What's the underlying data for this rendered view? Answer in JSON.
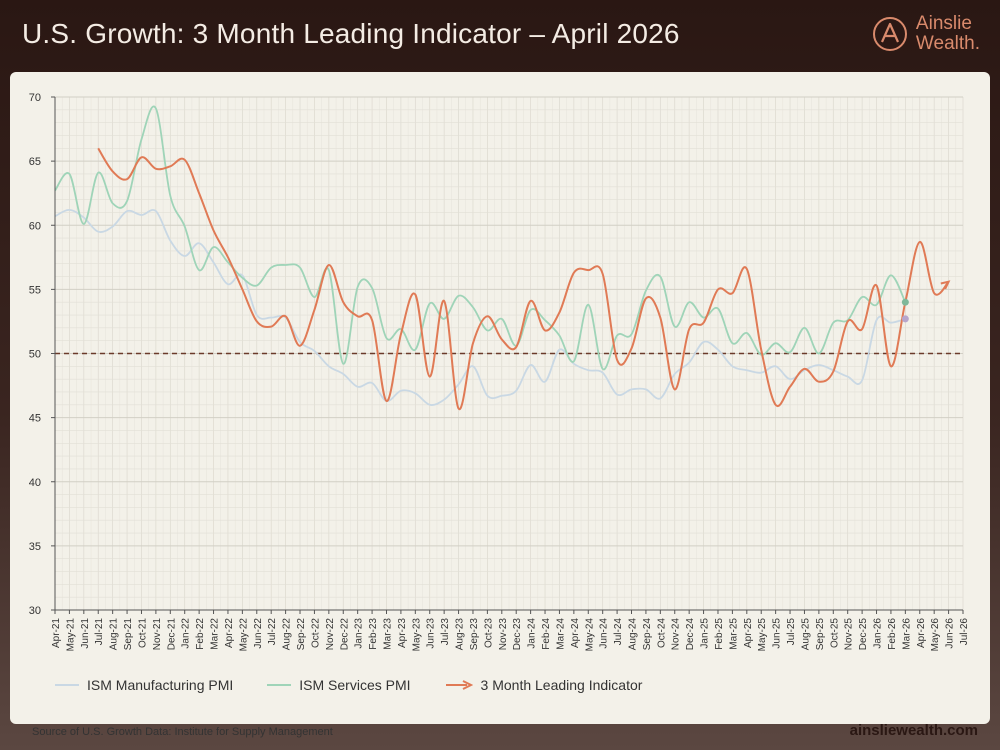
{
  "header": {
    "title": "U.S. Growth: 3 Month Leading Indicator – April 2026",
    "brand_line1": "Ainslie",
    "brand_line2": "Wealth."
  },
  "chart_data": {
    "type": "line",
    "title": "U.S. Growth: 3 Month Leading Indicator – April 2026",
    "xlabel": "",
    "ylabel": "",
    "ylim": [
      30,
      70
    ],
    "yticks": [
      30,
      35,
      40,
      45,
      50,
      55,
      60,
      65,
      70
    ],
    "reference_line": {
      "y": 50,
      "style": "dashed",
      "color": "#6b3a2a"
    },
    "grid": true,
    "legend_position": "bottom",
    "categories": [
      "Apr-21",
      "May-21",
      "Jun-21",
      "Jul-21",
      "Aug-21",
      "Sep-21",
      "Oct-21",
      "Nov-21",
      "Dec-21",
      "Jan-22",
      "Feb-22",
      "Mar-22",
      "Apr-22",
      "May-22",
      "Jun-22",
      "Jul-22",
      "Aug-22",
      "Sep-22",
      "Oct-22",
      "Nov-22",
      "Dec-22",
      "Jan-23",
      "Feb-23",
      "Mar-23",
      "Apr-23",
      "May-23",
      "Jun-23",
      "Jul-23",
      "Aug-23",
      "Sep-23",
      "Oct-23",
      "Nov-23",
      "Dec-23",
      "Jan-24",
      "Feb-24",
      "Mar-24",
      "Apr-24",
      "May-24",
      "Jun-24",
      "Jul-24",
      "Aug-24",
      "Sep-24",
      "Oct-24",
      "Nov-24",
      "Dec-24",
      "Jan-25",
      "Feb-25",
      "Mar-25",
      "Apr-25",
      "May-25",
      "Jun-25",
      "Jul-25",
      "Aug-25",
      "Sep-25",
      "Oct-25",
      "Nov-25",
      "Dec-25",
      "Jan-26",
      "Feb-26",
      "Mar-26",
      "Apr-26",
      "May-26",
      "Jun-26",
      "Jul-26"
    ],
    "series": [
      {
        "name": "ISM Manufacturing PMI",
        "color": "#c9d8e4",
        "values": [
          60.7,
          61.2,
          60.6,
          59.5,
          59.9,
          61.1,
          60.8,
          61.1,
          58.8,
          57.6,
          58.6,
          57.1,
          55.4,
          56.1,
          53.0,
          52.8,
          52.8,
          50.9,
          50.2,
          49.0,
          48.4,
          47.4,
          47.7,
          46.3,
          47.1,
          46.9,
          46.0,
          46.4,
          47.6,
          49.0,
          46.7,
          46.7,
          47.1,
          49.1,
          47.8,
          50.3,
          49.2,
          48.7,
          48.5,
          46.8,
          47.2,
          47.2,
          46.5,
          48.4,
          49.3,
          50.9,
          50.3,
          49.0,
          48.7,
          48.5,
          49.0,
          48.0,
          48.7,
          49.1,
          48.7,
          48.2,
          47.9,
          52.6,
          52.4,
          52.7,
          null,
          null,
          null,
          null
        ]
      },
      {
        "name": "ISM Services PMI",
        "color": "#9fd4b8",
        "values": [
          62.7,
          64.0,
          60.1,
          64.1,
          61.7,
          61.9,
          66.7,
          69.1,
          62.3,
          59.9,
          56.5,
          58.3,
          57.1,
          55.9,
          55.3,
          56.7,
          56.9,
          56.7,
          54.4,
          56.5,
          49.2,
          55.2,
          55.1,
          51.2,
          51.9,
          50.3,
          53.9,
          52.7,
          54.5,
          53.6,
          51.8,
          52.7,
          50.6,
          53.4,
          52.6,
          51.4,
          49.4,
          53.8,
          48.8,
          51.4,
          51.5,
          54.9,
          56.0,
          52.1,
          54.0,
          52.8,
          53.5,
          50.8,
          51.6,
          49.9,
          50.8,
          50.1,
          52.0,
          50.0,
          52.4,
          52.6,
          54.4,
          53.8,
          56.1,
          54.0,
          null,
          null,
          null,
          null
        ]
      },
      {
        "name": "3 Month Leading Indicator",
        "color": "#e07a55",
        "values": [
          null,
          null,
          null,
          66.0,
          64.2,
          63.6,
          65.3,
          64.4,
          64.6,
          65.1,
          62.5,
          59.6,
          57.5,
          55.0,
          52.5,
          52.1,
          52.9,
          50.6,
          53.4,
          56.9,
          54.0,
          52.9,
          52.6,
          46.3,
          51.5,
          54.6,
          48.2,
          54.1,
          45.7,
          50.8,
          52.9,
          51.1,
          50.5,
          54.1,
          51.8,
          53.2,
          56.3,
          56.5,
          56.2,
          49.5,
          50.4,
          54.3,
          52.8,
          47.2,
          51.9,
          52.4,
          55.0,
          54.7,
          56.6,
          50.3,
          46.0,
          47.4,
          48.8,
          47.8,
          48.6,
          52.5,
          51.9,
          55.3,
          49.0,
          54.0,
          58.7,
          54.7,
          55.6,
          null
        ]
      }
    ],
    "last_points": [
      {
        "series": "ISM Manufacturing PMI",
        "category": "Mar-26",
        "value": 52.7
      },
      {
        "series": "ISM Services PMI",
        "category": "Mar-26",
        "value": 54.0
      }
    ]
  },
  "legend": {
    "items": [
      {
        "label": "ISM Manufacturing PMI",
        "color": "#c9d8e4"
      },
      {
        "label": "ISM Services PMI",
        "color": "#9fd4b8"
      },
      {
        "label": "3 Month Leading Indicator",
        "color": "#e07a55"
      }
    ]
  },
  "footer": {
    "source": "Source of U.S. Growth Data: Institute for Supply Management",
    "website": "ainsliewealth.com"
  }
}
